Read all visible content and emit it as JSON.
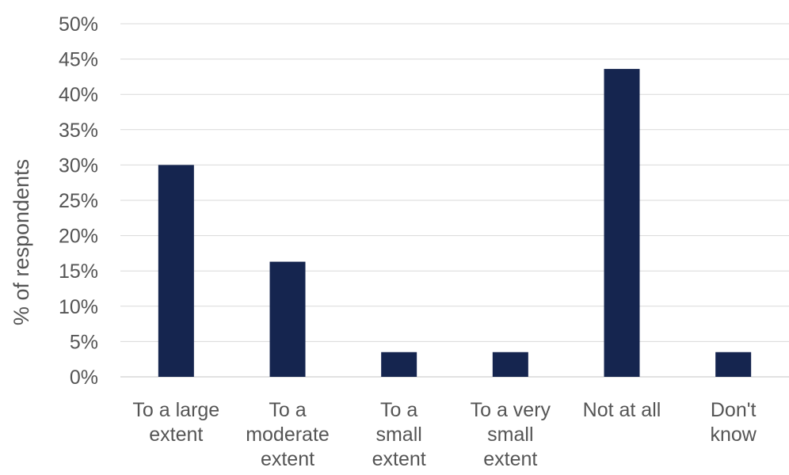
{
  "chart_data": {
    "type": "bar",
    "title": "",
    "xlabel": "",
    "ylabel": "% of respondents",
    "categories": [
      [
        "To a large",
        "extent"
      ],
      [
        "To a",
        "moderate",
        "extent"
      ],
      [
        "To a",
        "small",
        "extent"
      ],
      [
        "To a very",
        "small",
        "extent"
      ],
      [
        "Not at all"
      ],
      [
        "Don't",
        "know"
      ]
    ],
    "values": [
      30,
      16.3,
      3.5,
      3.5,
      43.6,
      3.5
    ],
    "ylim": [
      0,
      50
    ],
    "yticks": [
      0,
      5,
      10,
      15,
      20,
      25,
      30,
      35,
      40,
      45,
      50
    ],
    "ytick_labels": [
      "0%",
      "5%",
      "10%",
      "15%",
      "20%",
      "25%",
      "30%",
      "35%",
      "40%",
      "45%",
      "50%"
    ],
    "grid": true,
    "legend": "none",
    "colors": {
      "bar": "#15254f",
      "grid": "#d9d9d9",
      "text": "#555555"
    }
  }
}
